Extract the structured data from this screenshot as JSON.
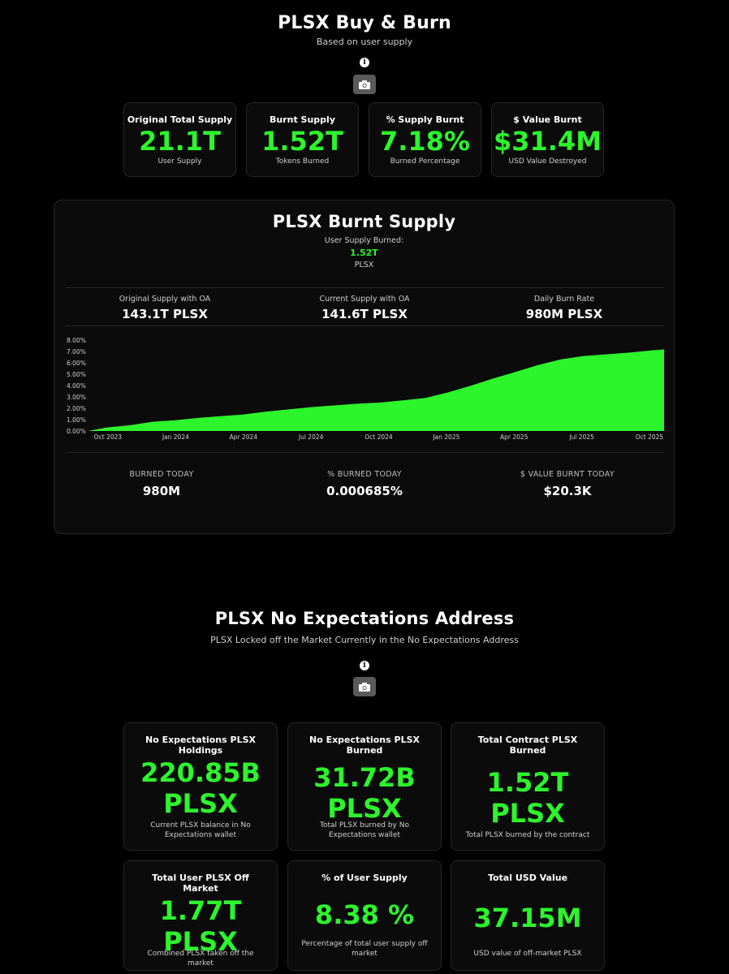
{
  "header": {
    "title": "PLSX Buy & Burn",
    "subtitle": "Based on user supply"
  },
  "top_cards": [
    {
      "title": "Original Total Supply",
      "value": "21.1T",
      "desc": "User Supply"
    },
    {
      "title": "Burnt Supply",
      "value": "1.52T",
      "desc": "Tokens Burned"
    },
    {
      "title": "% Supply Burnt",
      "value": "7.18%",
      "desc": "Burned Percentage"
    },
    {
      "title": "$ Value Burnt",
      "value": "$31.4M",
      "desc": "USD Value Destroyed"
    }
  ],
  "burn_panel": {
    "title": "PLSX Burnt Supply",
    "burned_label": "User Supply Burned:",
    "burned_value": "1.52T",
    "burned_unit": "PLSX",
    "metrics": [
      {
        "label": "Original Supply with OA",
        "value": "143.1T PLSX"
      },
      {
        "label": "Current Supply with OA",
        "value": "141.6T PLSX"
      },
      {
        "label": "Daily Burn Rate",
        "value": "980M PLSX"
      }
    ],
    "today": [
      {
        "label": "BURNED TODAY",
        "value": "980M"
      },
      {
        "label": "% BURNED TODAY",
        "value": "0.000685%"
      },
      {
        "label": "$ VALUE BURNT TODAY",
        "value": "$20.3K"
      }
    ]
  },
  "chart_data": {
    "type": "area",
    "title": "",
    "xlabel": "",
    "ylabel": "",
    "x_ticks": [
      "Oct 2023",
      "Jan 2024",
      "Apr 2024",
      "Jul 2024",
      "Oct 2024",
      "Jan 2025",
      "Apr 2025",
      "Jul 2025",
      "Oct 2025"
    ],
    "y_ticks": [
      "0.00%",
      "1.00%",
      "2.00%",
      "3.00%",
      "4.00%",
      "5.00%",
      "6.00%",
      "7.00%",
      "8.00%"
    ],
    "ylim": [
      0,
      8
    ],
    "fill_color": "#2cf52c",
    "grid": false,
    "x": [
      "2023-09-20",
      "2023-10-15",
      "2023-11-15",
      "2023-12-15",
      "2024-01-15",
      "2024-02-15",
      "2024-03-15",
      "2024-04-15",
      "2024-05-15",
      "2024-06-15",
      "2024-07-15",
      "2024-08-15",
      "2024-09-15",
      "2024-10-15",
      "2024-11-15",
      "2024-12-15",
      "2025-01-15",
      "2025-02-15",
      "2025-03-15",
      "2025-04-15",
      "2025-05-15",
      "2025-06-15",
      "2025-07-15",
      "2025-08-15",
      "2025-09-15",
      "2025-10-15",
      "2025-10-31"
    ],
    "values": [
      0.0,
      0.3,
      0.5,
      0.8,
      0.95,
      1.15,
      1.3,
      1.45,
      1.7,
      1.9,
      2.1,
      2.25,
      2.4,
      2.5,
      2.7,
      2.9,
      3.4,
      4.0,
      4.6,
      5.2,
      5.8,
      6.3,
      6.6,
      6.75,
      6.9,
      7.1,
      7.18
    ]
  },
  "ne_section": {
    "title": "PLSX No Expectations Address",
    "subtitle": "PLSX Locked off the Market Currently in the No Expectations Address"
  },
  "ne_cards": [
    {
      "title": "No Expectations PLSX Holdings",
      "value_line1": "220.85B",
      "value_line2": "PLSX",
      "desc": "Current PLSX balance in No Expectations wallet"
    },
    {
      "title": "No Expectations PLSX Burned",
      "value_line1": "31.72B",
      "value_line2": "PLSX",
      "desc": "Total PLSX burned by No Expectations wallet"
    },
    {
      "title": "Total Contract PLSX Burned",
      "value_line1": "1.52T",
      "value_line2": "PLSX",
      "desc": "Total PLSX burned by the contract"
    },
    {
      "title": "Total User PLSX Off Market",
      "value_line1": "1.77T",
      "value_line2": "PLSX",
      "desc": "Combined PLSX taken off the market"
    },
    {
      "title": "% of User Supply",
      "value_line1": "8.38 %",
      "value_line2": "",
      "desc": "Percentage of total user supply off market"
    },
    {
      "title": "Total USD Value",
      "value_line1": "37.15M",
      "value_line2": "",
      "desc": "USD value of off-market PLSX"
    }
  ],
  "icons": {
    "info": "info-icon",
    "camera": "camera-icon"
  },
  "colors": {
    "accent": "#2cf52c",
    "background": "#000000",
    "card": "#0b0b0b"
  }
}
